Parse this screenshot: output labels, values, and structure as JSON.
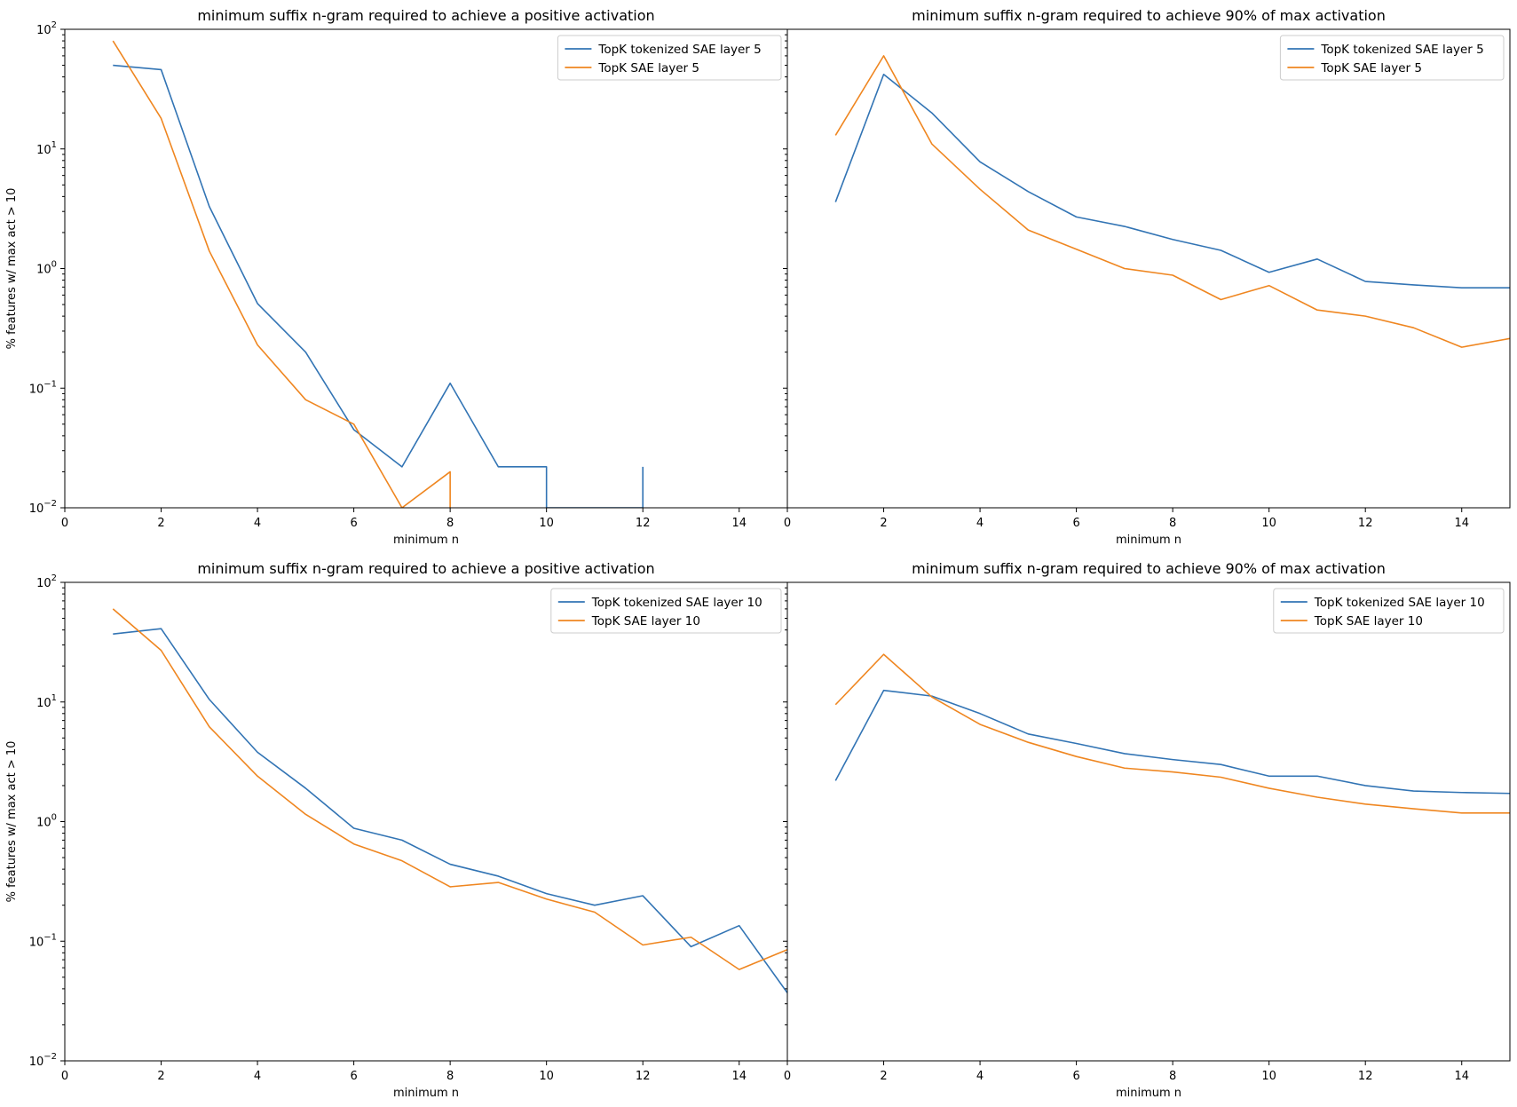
{
  "chart_data": [
    {
      "type": "line",
      "title": "minimum suffix n-gram required to achieve a positive activation",
      "xlabel": "minimum n",
      "ylabel": "% features w/ max act > 10",
      "yscale": "log",
      "xlim": [
        0,
        15
      ],
      "ylim": [
        0.01,
        100
      ],
      "grid": false,
      "legend": "top-right",
      "xticks": [
        "0",
        "2",
        "4",
        "6",
        "8",
        "10",
        "12",
        "14"
      ],
      "yticks": [
        {
          "value": 100,
          "base": "10",
          "exp": "2"
        },
        {
          "value": 10,
          "base": "10",
          "exp": "1"
        },
        {
          "value": 1,
          "base": "10",
          "exp": "0"
        },
        {
          "value": 0.1,
          "base": "10",
          "exp": "−1"
        },
        {
          "value": 0.01,
          "base": "10",
          "exp": "−2"
        }
      ],
      "series": [
        {
          "name": "TopK tokenized SAE layer 5",
          "color": "#3274b4",
          "x": [
            1,
            2,
            3,
            4,
            5,
            6,
            7,
            8,
            9,
            10,
            10,
            12,
            12
          ],
          "y": [
            50,
            46,
            3.3,
            0.51,
            0.2,
            0.045,
            0.022,
            0.11,
            0.022,
            0.022,
            0.01,
            0.01,
            0.022
          ]
        },
        {
          "name": "TopK SAE layer 5",
          "color": "#ef8620",
          "x": [
            1,
            2,
            3,
            4,
            5,
            6,
            7,
            8,
            8
          ],
          "y": [
            80,
            18,
            1.4,
            0.23,
            0.08,
            0.05,
            0.01,
            0.02,
            0.01
          ]
        }
      ]
    },
    {
      "type": "line",
      "title": "minimum suffix n-gram required to achieve 90% of max activation",
      "xlabel": "minimum n",
      "ylabel": "",
      "yscale": "log",
      "xlim": [
        0,
        15
      ],
      "ylim": [
        0.01,
        100
      ],
      "grid": false,
      "legend": "top-right",
      "xticks": [
        "0",
        "2",
        "4",
        "6",
        "8",
        "10",
        "12",
        "14"
      ],
      "series": [
        {
          "name": "TopK tokenized SAE layer 5",
          "color": "#3274b4",
          "x": [
            1,
            2,
            3,
            4,
            5,
            6,
            7,
            8,
            9,
            10,
            11,
            12,
            13,
            14,
            15
          ],
          "y": [
            3.6,
            42,
            20,
            7.8,
            4.4,
            2.7,
            2.25,
            1.75,
            1.42,
            0.93,
            1.2,
            0.78,
            0.73,
            0.69,
            0.69
          ]
        },
        {
          "name": "TopK SAE layer 5",
          "color": "#ef8620",
          "x": [
            1,
            2,
            3,
            4,
            5,
            6,
            7,
            8,
            9,
            10,
            11,
            12,
            13,
            14,
            15
          ],
          "y": [
            13,
            60,
            11,
            4.6,
            2.1,
            1.45,
            1.0,
            0.88,
            0.55,
            0.72,
            0.45,
            0.4,
            0.32,
            0.22,
            0.26
          ]
        }
      ]
    },
    {
      "type": "line",
      "title": "minimum suffix n-gram required to achieve a positive activation",
      "xlabel": "minimum n",
      "ylabel": "% features w/ max act > 10",
      "yscale": "log",
      "xlim": [
        0,
        15
      ],
      "ylim": [
        0.01,
        100
      ],
      "grid": false,
      "legend": "top-right",
      "xticks": [
        "0",
        "2",
        "4",
        "6",
        "8",
        "10",
        "12",
        "14"
      ],
      "series": [
        {
          "name": "TopK tokenized SAE layer 10",
          "color": "#3274b4",
          "x": [
            1,
            2,
            3,
            4,
            5,
            6,
            7,
            8,
            9,
            10,
            11,
            12,
            13,
            14,
            15
          ],
          "y": [
            37,
            41,
            10.5,
            3.8,
            1.9,
            0.88,
            0.7,
            0.44,
            0.35,
            0.25,
            0.2,
            0.24,
            0.09,
            0.135,
            0.037
          ]
        },
        {
          "name": "TopK SAE layer 10",
          "color": "#ef8620",
          "x": [
            1,
            2,
            3,
            4,
            5,
            6,
            7,
            8,
            9,
            10,
            11,
            12,
            13,
            14,
            15
          ],
          "y": [
            60,
            27,
            6.2,
            2.4,
            1.15,
            0.65,
            0.47,
            0.285,
            0.31,
            0.225,
            0.175,
            0.093,
            0.108,
            0.058,
            0.085
          ]
        }
      ]
    },
    {
      "type": "line",
      "title": "minimum suffix n-gram required to achieve 90% of max activation",
      "xlabel": "minimum n",
      "ylabel": "",
      "yscale": "log",
      "xlim": [
        0,
        15
      ],
      "ylim": [
        0.01,
        100
      ],
      "grid": false,
      "legend": "top-right",
      "xticks": [
        "0",
        "2",
        "4",
        "6",
        "8",
        "10",
        "12",
        "14"
      ],
      "series": [
        {
          "name": "TopK tokenized SAE layer 10",
          "color": "#3274b4",
          "x": [
            1,
            2,
            3,
            4,
            5,
            6,
            7,
            8,
            9,
            10,
            11,
            12,
            13,
            14,
            15
          ],
          "y": [
            2.2,
            12.5,
            11.2,
            8,
            5.4,
            4.5,
            3.7,
            3.3,
            3.0,
            2.4,
            2.4,
            2.0,
            1.8,
            1.75,
            1.72
          ]
        },
        {
          "name": "TopK SAE layer 10",
          "color": "#ef8620",
          "x": [
            1,
            2,
            3,
            4,
            5,
            6,
            7,
            8,
            9,
            10,
            11,
            12,
            13,
            14,
            15
          ],
          "y": [
            9.5,
            25,
            11,
            6.5,
            4.6,
            3.5,
            2.8,
            2.6,
            2.35,
            1.9,
            1.6,
            1.4,
            1.28,
            1.18,
            1.18
          ]
        }
      ]
    }
  ]
}
